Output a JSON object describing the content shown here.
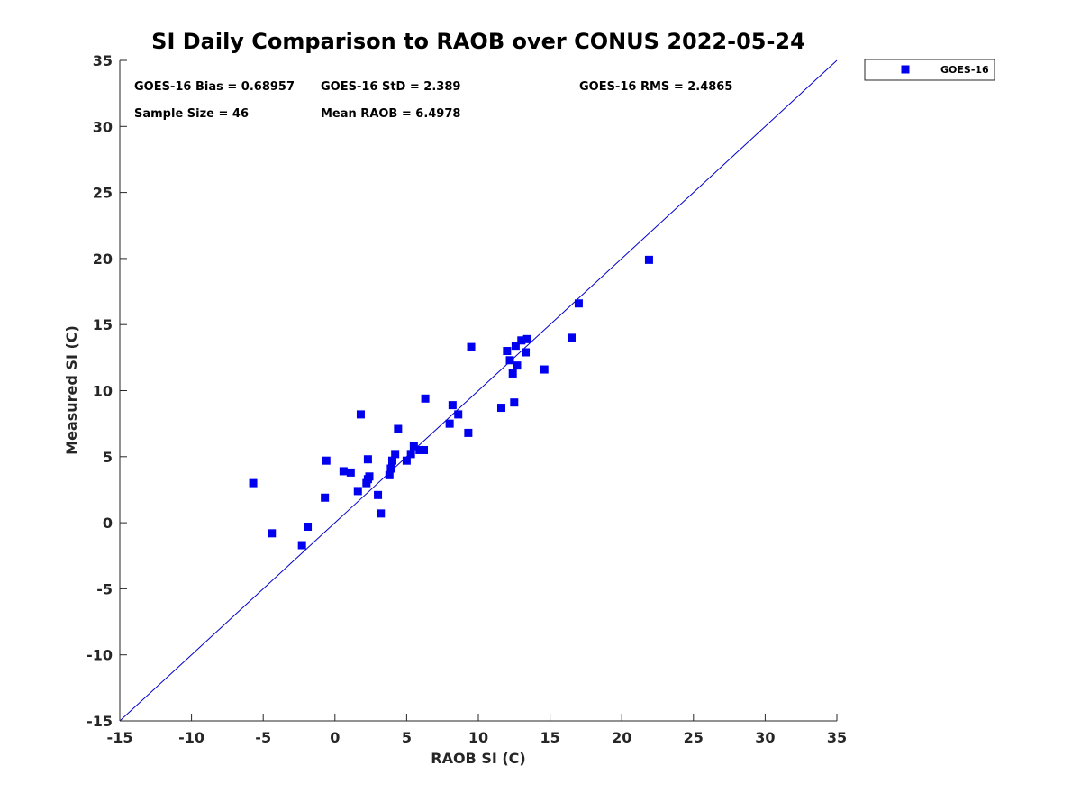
{
  "chart_data": {
    "type": "scatter",
    "title": "SI Daily Comparison to RAOB over CONUS 2022-05-24",
    "xlabel": "RAOB SI (C)",
    "ylabel": "Measured SI (C)",
    "xlim": [
      -15,
      35
    ],
    "ylim": [
      -15,
      35
    ],
    "xticks": [
      "-15",
      "-10",
      "-5",
      "0",
      "5",
      "10",
      "15",
      "20",
      "25",
      "30",
      "35"
    ],
    "yticks": [
      "-15",
      "-10",
      "-5",
      "0",
      "5",
      "10",
      "15",
      "20",
      "25",
      "30",
      "35"
    ],
    "grid": false,
    "legend_position": "top-right",
    "reference_line": {
      "from": [
        -15,
        -15
      ],
      "to": [
        35,
        35
      ],
      "color": "#0000cc"
    },
    "stats": {
      "bias": "GOES-16 Bias = 0.68957",
      "std": "GOES-16 StD = 2.389",
      "rms": "GOES-16 RMS = 2.4865",
      "sample_size": "Sample Size = 46",
      "mean_raob": "Mean RAOB = 6.4978"
    },
    "series": [
      {
        "name": "GOES-16",
        "color": "#0000ee",
        "marker": "square",
        "points": [
          [
            -5.7,
            3.0
          ],
          [
            -4.4,
            -0.8
          ],
          [
            -2.3,
            -1.7
          ],
          [
            -1.9,
            -0.3
          ],
          [
            -0.7,
            1.9
          ],
          [
            -0.6,
            4.7
          ],
          [
            0.6,
            3.9
          ],
          [
            1.1,
            3.8
          ],
          [
            1.6,
            2.4
          ],
          [
            1.8,
            8.2
          ],
          [
            2.2,
            3.0
          ],
          [
            2.3,
            4.8
          ],
          [
            2.3,
            3.3
          ],
          [
            2.4,
            3.5
          ],
          [
            3.0,
            2.1
          ],
          [
            3.2,
            0.7
          ],
          [
            3.8,
            3.6
          ],
          [
            3.9,
            4.1
          ],
          [
            4.0,
            4.7
          ],
          [
            4.2,
            5.2
          ],
          [
            4.4,
            7.1
          ],
          [
            5.0,
            4.7
          ],
          [
            5.3,
            5.2
          ],
          [
            5.5,
            5.8
          ],
          [
            5.9,
            5.5
          ],
          [
            6.2,
            5.5
          ],
          [
            6.3,
            9.4
          ],
          [
            8.0,
            7.5
          ],
          [
            8.2,
            8.9
          ],
          [
            8.6,
            8.2
          ],
          [
            9.3,
            6.8
          ],
          [
            9.5,
            13.3
          ],
          [
            11.6,
            8.7
          ],
          [
            12.0,
            13.0
          ],
          [
            12.2,
            12.3
          ],
          [
            12.4,
            11.3
          ],
          [
            12.5,
            9.1
          ],
          [
            12.6,
            13.4
          ],
          [
            12.7,
            11.9
          ],
          [
            13.0,
            13.8
          ],
          [
            13.3,
            12.9
          ],
          [
            13.4,
            13.9
          ],
          [
            14.6,
            11.6
          ],
          [
            16.5,
            14.0
          ],
          [
            17.0,
            16.6
          ],
          [
            21.9,
            19.9
          ]
        ]
      }
    ]
  }
}
